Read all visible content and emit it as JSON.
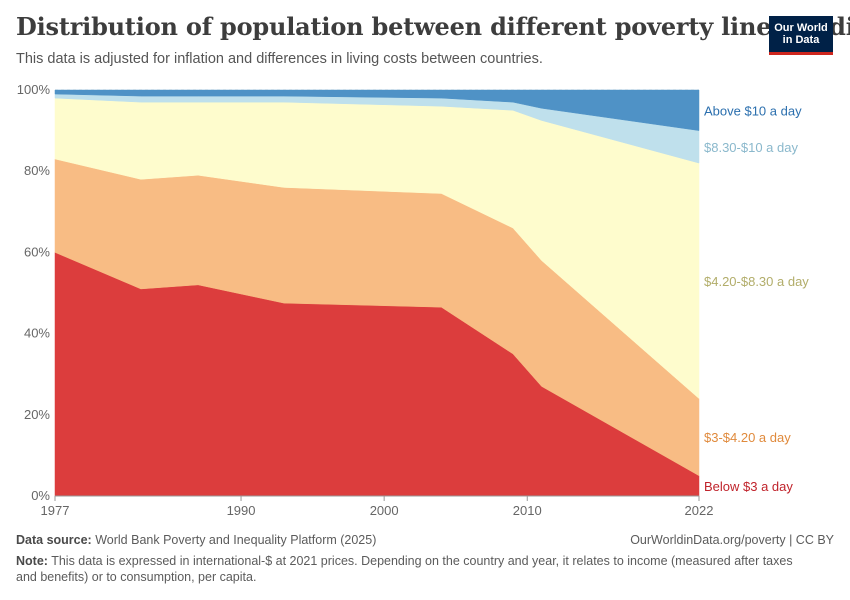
{
  "header": {
    "title": "Distribution of population between different poverty lines, India",
    "subtitle": "This data is adjusted for inflation and differences in living costs between countries.",
    "logo_line1": "Our World",
    "logo_line2": "in Data"
  },
  "footer": {
    "source_label": "Data source:",
    "source_text": "World Bank Poverty and Inequality Platform (2025)",
    "license": "OurWorldinData.org/poverty | CC BY",
    "note_label": "Note:",
    "note_text": "This data is expressed in international-$ at 2021 prices. Depending on the country and year, it relates to income (measured after taxes and benefits) or to consumption, per capita."
  },
  "chart_data": {
    "type": "area",
    "stacked": true,
    "x": [
      1977,
      1983,
      1987,
      1993,
      2004,
      2009,
      2011,
      2022
    ],
    "xticks": [
      "1977",
      "1990",
      "2000",
      "2010",
      "2022"
    ],
    "yticks": [
      "0%",
      "20%",
      "40%",
      "60%",
      "80%",
      "100%"
    ],
    "ylim": [
      0,
      100
    ],
    "grid": true,
    "legend": "right-side direct labels",
    "series": [
      {
        "name": "Below $3 a day",
        "color": "#dc3d3d",
        "label_color": "#c0232b",
        "values": [
          60,
          51,
          52,
          47.5,
          46.5,
          35,
          27,
          5
        ]
      },
      {
        "name": "$3-$4.20 a day",
        "color": "#f8bc84",
        "label_color": "#e08a3c",
        "values": [
          23,
          27,
          27,
          28.5,
          28,
          31,
          31,
          19
        ]
      },
      {
        "name": "$4.20-$8.30 a day",
        "color": "#fefccd",
        "label_color": "#b2ad6a",
        "values": [
          15,
          19,
          18,
          21,
          21.5,
          29,
          34.5,
          58
        ]
      },
      {
        "name": "$8.30-$10 a day",
        "color": "#bfe0ec",
        "label_color": "#8ab8cc",
        "values": [
          1,
          1.5,
          1.5,
          1.5,
          2,
          2,
          3,
          8
        ]
      },
      {
        "name": "Above $10 a day",
        "color": "#4f92c6",
        "label_color": "#2b6fae",
        "values": [
          1,
          1.5,
          1.5,
          1.5,
          2,
          3,
          4.5,
          10
        ]
      }
    ]
  }
}
